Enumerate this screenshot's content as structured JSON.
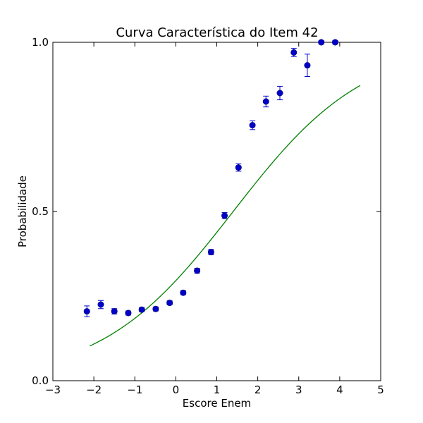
{
  "chart_data": {
    "type": "scatter",
    "title": "Curva Característica do Item 42",
    "xlabel": "Escore Enem",
    "ylabel": "Probabilidade",
    "xlim": [
      -3,
      5
    ],
    "ylim": [
      0,
      1
    ],
    "xticks": [
      -3,
      -2,
      -1,
      0,
      1,
      2,
      3,
      4,
      5
    ],
    "xtick_labels": [
      "−3",
      "−2",
      "−1",
      "0",
      "1",
      "2",
      "3",
      "4",
      "5"
    ],
    "yticks": [
      0,
      0.5,
      1
    ],
    "ytick_labels": [
      "0.0",
      "0.5",
      "1.0"
    ],
    "grid": false,
    "legend": "none",
    "colors": {
      "points": "#0000cc",
      "curve": "#008000"
    },
    "series": [
      {
        "kind": "points-with-error-bars",
        "x": [
          -2.17,
          -1.83,
          -1.5,
          -1.16,
          -0.83,
          -0.49,
          -0.15,
          0.18,
          0.52,
          0.86,
          1.19,
          1.53,
          1.87,
          2.2,
          2.54,
          2.88,
          3.21,
          3.55,
          3.89
        ],
        "y": [
          0.205,
          0.225,
          0.205,
          0.2,
          0.21,
          0.212,
          0.23,
          0.26,
          0.325,
          0.38,
          0.488,
          0.63,
          0.755,
          0.825,
          0.85,
          0.97,
          0.932,
          1.0,
          1.0
        ],
        "err": [
          0.016,
          0.012,
          0.008,
          0.006,
          0.006,
          0.006,
          0.006,
          0.006,
          0.007,
          0.008,
          0.009,
          0.011,
          0.013,
          0.016,
          0.02,
          0.012,
          0.033,
          0.005,
          0.005
        ]
      },
      {
        "kind": "curve",
        "x_range": [
          -2.1,
          4.5
        ],
        "logistic": {
          "lower": 0.0,
          "upper": 1.0,
          "slope": 0.62,
          "midpoint": 1.4
        }
      }
    ]
  }
}
